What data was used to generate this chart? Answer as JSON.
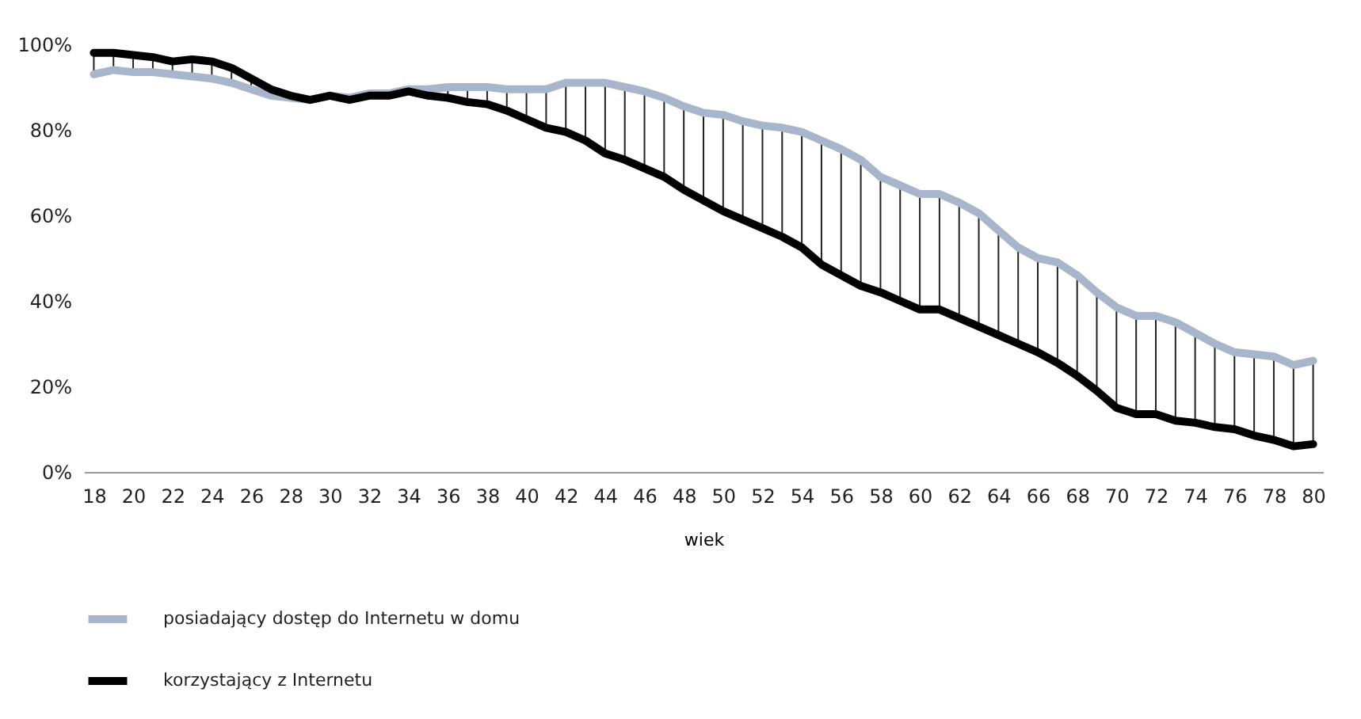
{
  "chart_data": {
    "type": "line",
    "xlabel": "wiek",
    "categories": [
      "18",
      null,
      "20",
      null,
      "22",
      null,
      "24",
      null,
      "26",
      null,
      "28",
      null,
      "30",
      null,
      "32",
      null,
      "34",
      null,
      "36",
      null,
      "38",
      null,
      "40",
      null,
      "42",
      null,
      "44",
      null,
      "46",
      null,
      "48",
      null,
      "50",
      null,
      "52",
      null,
      "54",
      null,
      "56",
      null,
      "58",
      null,
      "60",
      null,
      "62",
      null,
      "64",
      null,
      "66",
      null,
      "68",
      null,
      "70",
      null,
      "72",
      null,
      "74",
      null,
      "76",
      null,
      "78",
      null,
      "80"
    ],
    "series": [
      {
        "name": "posiadający dostęp do Internetu w domu",
        "color": "#a8b6cc",
        "values": [
          93,
          94,
          93.5,
          93.5,
          93,
          92.5,
          92,
          91,
          89.5,
          88,
          87.5,
          87,
          88,
          87.5,
          88.5,
          88.5,
          89.5,
          89.5,
          90,
          90,
          90,
          89.5,
          89.5,
          89.5,
          91,
          91,
          91,
          90,
          89,
          87.5,
          85.5,
          84,
          83.5,
          82,
          81,
          80.5,
          79.5,
          77.5,
          75.5,
          73,
          69,
          67,
          65,
          65,
          63,
          60.5,
          56.5,
          52.5,
          50,
          49,
          46,
          42,
          38.5,
          36.5,
          36.5,
          35,
          32.5,
          30,
          28,
          27.5,
          27,
          25,
          26
        ],
        "errors": [
          [
            93,
            98
          ],
          [
            94,
            98
          ],
          [
            93.5,
            97.5
          ],
          [
            93.5,
            97
          ],
          [
            93,
            96
          ],
          [
            92.5,
            96.5
          ],
          [
            92,
            96
          ],
          [
            91,
            94.5
          ],
          [
            89.5,
            92
          ],
          [
            88,
            89.5
          ],
          [
            87.5,
            88
          ],
          [
            87,
            87
          ],
          [
            88,
            88
          ],
          [
            87,
            87.5
          ],
          [
            88,
            88.5
          ],
          [
            88,
            88.5
          ],
          [
            89,
            89.5
          ],
          [
            88,
            89.5
          ],
          [
            87.5,
            90
          ],
          [
            86.5,
            90
          ],
          [
            86,
            90
          ],
          [
            84.5,
            89.5
          ],
          [
            82.5,
            89.5
          ],
          [
            80.5,
            89.5
          ],
          [
            79.5,
            91
          ],
          [
            77.5,
            91
          ],
          [
            74.5,
            91
          ],
          [
            73,
            90
          ],
          [
            71,
            89
          ],
          [
            69,
            87.5
          ],
          [
            66,
            85.5
          ],
          [
            63.5,
            84
          ],
          [
            61,
            83.5
          ],
          [
            59,
            82
          ],
          [
            57,
            81
          ],
          [
            55,
            80.5
          ],
          [
            52.5,
            79.5
          ],
          [
            48.5,
            77.5
          ],
          [
            46,
            75.5
          ],
          [
            43.5,
            73
          ],
          [
            42,
            69
          ],
          [
            40,
            67
          ],
          [
            38,
            65
          ],
          [
            38,
            65
          ],
          [
            36,
            63
          ],
          [
            34,
            60.5
          ],
          [
            32,
            56.5
          ],
          [
            30,
            52.5
          ],
          [
            28,
            50
          ],
          [
            25.5,
            49
          ],
          [
            22.5,
            46
          ],
          [
            19,
            42
          ],
          [
            15,
            38.5
          ],
          [
            13.5,
            36.5
          ],
          [
            13.5,
            36.5
          ],
          [
            12,
            35
          ],
          [
            11.5,
            32.5
          ],
          [
            10.5,
            30
          ],
          [
            10,
            28
          ],
          [
            8.5,
            27.5
          ],
          [
            7.5,
            27
          ],
          [
            6,
            25
          ],
          [
            6.5,
            26
          ]
        ]
      },
      {
        "name": "korzystający z Internetu",
        "color": "#000000",
        "values": [
          98,
          98,
          97.5,
          97,
          96,
          96.5,
          96,
          94.5,
          92,
          89.5,
          88,
          87,
          88,
          87,
          88,
          88,
          89,
          88,
          87.5,
          86.5,
          86,
          84.5,
          82.5,
          80.5,
          79.5,
          77.5,
          74.5,
          73,
          71,
          69,
          66,
          63.5,
          61,
          59,
          57,
          55,
          52.5,
          48.5,
          46,
          43.5,
          42,
          40,
          38,
          38,
          36,
          34,
          32,
          30,
          28,
          25.5,
          22.5,
          19,
          15,
          13.5,
          13.5,
          12,
          11.5,
          10.5,
          10,
          8.5,
          7.5,
          6,
          6.5
        ]
      }
    ],
    "ylim": [
      0,
      100
    ],
    "yticks": [
      {
        "value": 0,
        "label": "0%"
      },
      {
        "value": 20,
        "label": "20%"
      },
      {
        "value": 40,
        "label": "40%"
      },
      {
        "value": 60,
        "label": "60%"
      },
      {
        "value": 80,
        "label": "80%"
      },
      {
        "value": 100,
        "label": "100%"
      }
    ],
    "grid": false,
    "legend": "bottom left",
    "line_style": "solid",
    "marker": "none"
  }
}
